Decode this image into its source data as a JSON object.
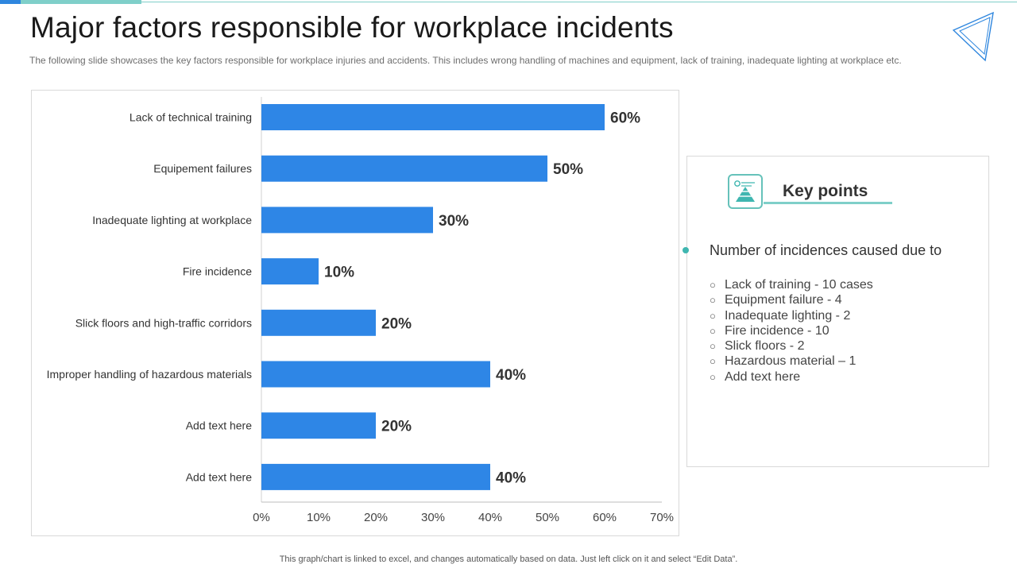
{
  "slide": {
    "title": "Major factors responsible for workplace incidents",
    "subtitle": "The following slide showcases the key factors responsible for workplace injuries and accidents. This includes wrong handling of machines and equipment, lack of training, inadequate lighting at workplace etc.",
    "footer": "This graph/chart is linked to excel, and changes automatically based on data. Just left click on it and select “Edit Data”.",
    "accent_color": "#7fcfc9",
    "bar_color": "#2e86e6"
  },
  "chart_data": {
    "type": "bar",
    "orientation": "horizontal",
    "categories": [
      "Lack of technical training",
      "Equipement failures",
      "Inadequate lighting at workplace",
      "Fire incidence",
      "Slick floors and high-traffic corridors",
      "Improper handling of hazardous materials",
      "Add text here",
      "Add text here"
    ],
    "values": [
      60,
      50,
      30,
      10,
      20,
      40,
      20,
      40
    ],
    "value_labels": [
      "60%",
      "50%",
      "30%",
      "10%",
      "20%",
      "40%",
      "20%",
      "40%"
    ],
    "xlim": [
      0,
      70
    ],
    "x_ticks": [
      0,
      10,
      20,
      30,
      40,
      50,
      60,
      70
    ],
    "x_tick_labels": [
      "0%",
      "10%",
      "20%",
      "30%",
      "40%",
      "50%",
      "60%",
      "70%"
    ],
    "grid": false,
    "legend": "none"
  },
  "key_points": {
    "icon": "pyramid-chart-icon",
    "title": "Key points",
    "lead": "Number of incidences caused due to",
    "items": [
      "Lack of training - 10 cases",
      "Equipment failure - 4",
      "Inadequate  lighting - 2",
      "Fire incidence - 10",
      "Slick floors - 2",
      "Hazardous material – 1",
      "Add text here"
    ]
  }
}
